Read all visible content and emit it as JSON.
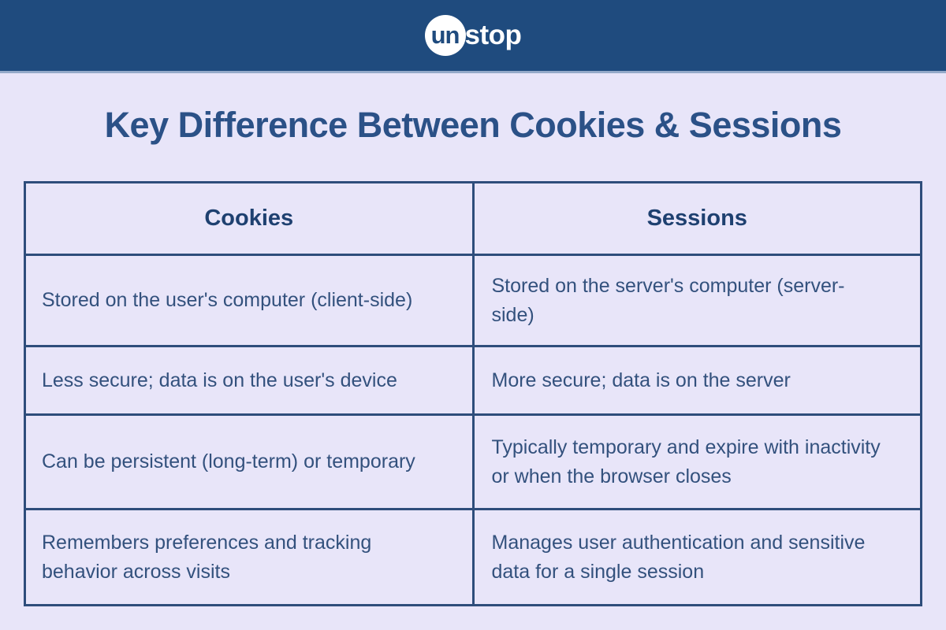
{
  "logo": {
    "circle_text": "un",
    "rest_text": "stop"
  },
  "title": "Key Difference Between Cookies & Sessions",
  "table": {
    "headers": [
      "Cookies",
      "Sessions"
    ],
    "rows": [
      [
        "Stored on the user's computer (client-side)",
        "Stored on the server's computer (server-side)"
      ],
      [
        "Less secure; data is on the user's device",
        "More secure; data is on the server"
      ],
      [
        "Can be persistent (long-term) or temporary",
        "Typically temporary and expire with inactivity or when the browser closes"
      ],
      [
        "Remembers preferences and tracking behavior across visits",
        "Manages user authentication and sensitive data for a single session"
      ]
    ]
  },
  "colors": {
    "header_bg": "#1f4b7e",
    "header_divider": "#94a9c9",
    "page_bg": "#e8e5f9",
    "title_color": "#2b5187",
    "table_border": "#2e4d7b",
    "header_cell_text": "#1e4070",
    "body_cell_text": "#33517d",
    "logo_white": "#ffffff"
  }
}
